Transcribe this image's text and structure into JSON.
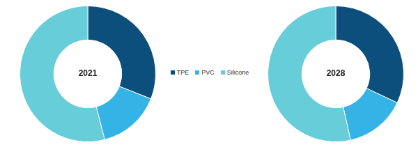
{
  "chart_data": [
    {
      "type": "doughnut",
      "title": "2021",
      "categories": [
        "TPE",
        "PVC",
        "Silicone"
      ],
      "values": [
        31,
        15,
        54
      ],
      "colors": [
        "#0d4f7c",
        "#33b3e6",
        "#66cdd9"
      ],
      "legend": "right"
    },
    {
      "type": "doughnut",
      "title": "2028",
      "categories": [
        "TPE",
        "PVC",
        "Silicone"
      ],
      "values": [
        32,
        14.5,
        53.5
      ],
      "colors": [
        "#0d4f7c",
        "#33b3e6",
        "#66cdd9"
      ]
    }
  ]
}
